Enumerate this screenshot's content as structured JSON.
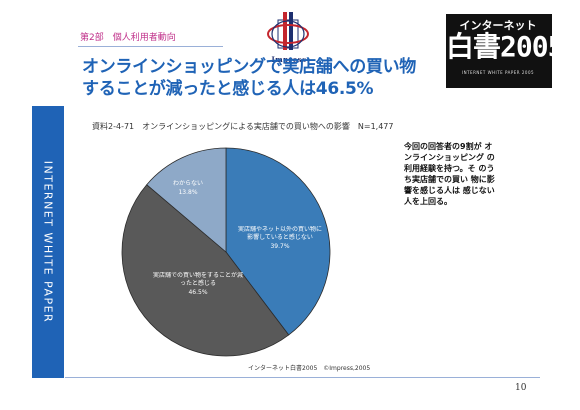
{
  "header": {
    "section_label": "第2部　個人利用者動向",
    "logo_text": "Impress",
    "badge": {
      "top": "インターネット",
      "main": "白書2005",
      "sub": "INTERNET WHITE PAPER 2005"
    }
  },
  "sidebar": {
    "text": "INTERNET WHITE PAPER"
  },
  "title": {
    "line1": "オンラインショッピングで実店舗への買い物",
    "line2": "することが減ったと感じる人は46.5%"
  },
  "chart_caption": "資料2-4-71　オンラインショッピングによる実店舗での買い物への影響　N=1,477",
  "note": "今回の回答者の9割が オンラインショッピング の利用経験を持つ。そ のうち実店舗での買い 物に影響を感じる人は 感じない人を上回る。",
  "source": "インターネット白書2005　©Impress,2005",
  "page_number": "10",
  "chart_data": {
    "type": "pie",
    "title": "",
    "slices": [
      {
        "label": "実店舗やネット以外の買い物に影響していると感じない",
        "value": 39.7,
        "display": "39.7%",
        "color": "#3a7cb8"
      },
      {
        "label": "実店舗での買い物をすることが減ったと感じる",
        "value": 46.5,
        "display": "46.5%",
        "color": "#595959"
      },
      {
        "label": "わからない",
        "value": 13.8,
        "display": "13.8%",
        "color": "#8ea9c8"
      }
    ],
    "start_angle_deg": 0,
    "direction": "clockwise",
    "legend": "none"
  }
}
